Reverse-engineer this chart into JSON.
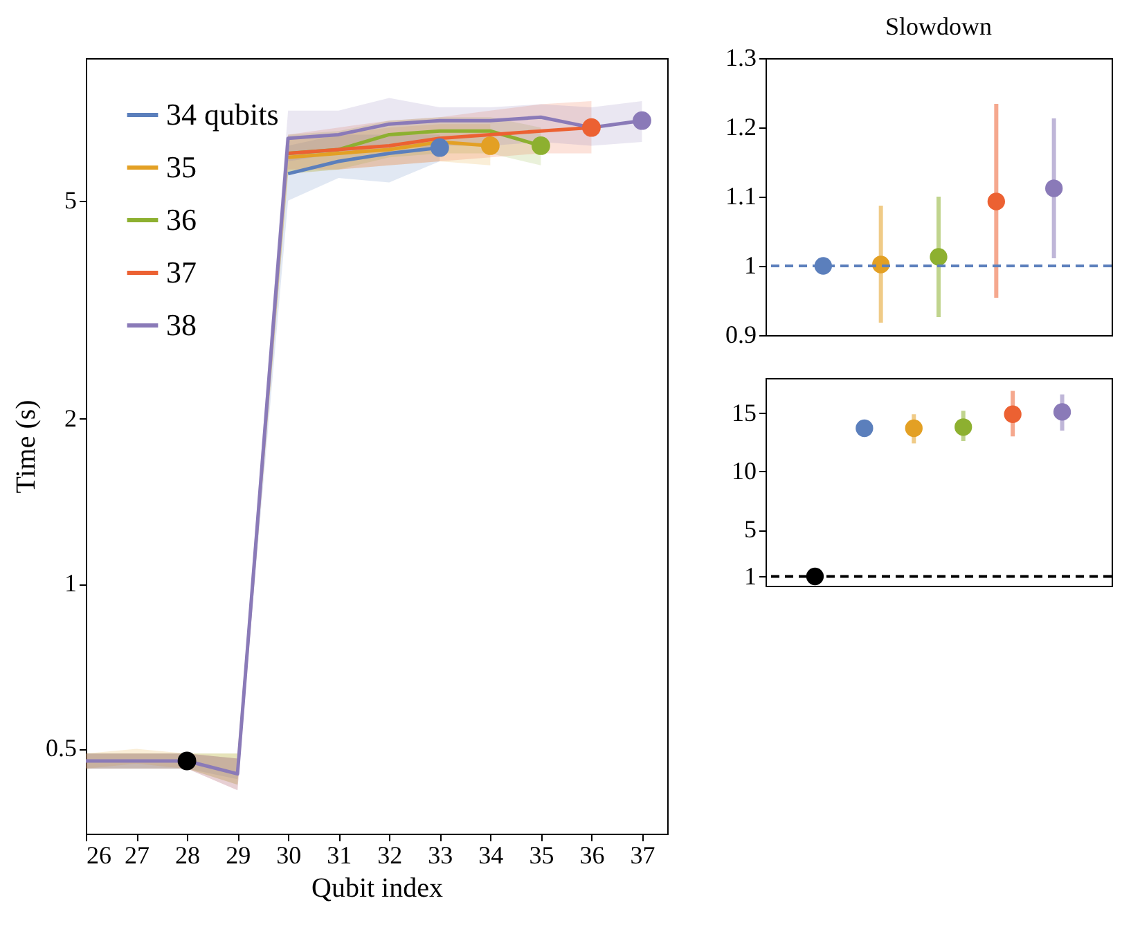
{
  "chart_data": [
    {
      "type": "line",
      "xlabel": "Qubit index",
      "ylabel": "Time (s)",
      "log": true,
      "xlim": [
        26,
        37.5
      ],
      "xticks": [
        26,
        27,
        28,
        29,
        30,
        31,
        32,
        33,
        34,
        35,
        36,
        37
      ],
      "ylim": [
        0.35,
        9.1
      ],
      "yticks": [
        0.5,
        1,
        2,
        5
      ],
      "legend": "top left",
      "grid": false,
      "marker": "none",
      "line_style": "solid",
      "series": [
        {
          "name": "34 qubits",
          "color": "#5b7fbc",
          "x": [
            26,
            27,
            28,
            29,
            30,
            31,
            32,
            33
          ],
          "values": [
            null,
            null,
            null,
            null,
            5.6,
            5.9,
            6.1,
            6.25
          ],
          "lower": [
            0.46,
            0.46,
            0.46,
            0.44,
            5.0,
            5.5,
            5.4,
            5.9
          ],
          "upper": [
            0.49,
            0.49,
            0.49,
            0.48,
            6.3,
            6.6,
            6.6,
            6.6
          ]
        },
        {
          "name": "35",
          "color": "#e3a024",
          "x": [
            26,
            27,
            28,
            29,
            30,
            31,
            32,
            33,
            34
          ],
          "values": [
            null,
            null,
            null,
            null,
            6.0,
            6.1,
            6.2,
            6.4,
            6.3
          ],
          "lower": [
            0.46,
            0.47,
            0.46,
            0.43,
            5.6,
            5.7,
            5.8,
            5.9,
            5.8
          ],
          "upper": [
            0.49,
            0.5,
            0.49,
            0.49,
            6.5,
            6.6,
            6.8,
            6.9,
            6.9
          ]
        },
        {
          "name": "36",
          "color": "#8db030",
          "x": [
            26,
            27,
            28,
            29,
            30,
            31,
            32,
            33,
            34,
            35
          ],
          "values": [
            null,
            null,
            null,
            null,
            6.1,
            6.2,
            6.6,
            6.7,
            6.7,
            6.3
          ],
          "lower": [
            0.46,
            0.46,
            0.46,
            0.43,
            5.6,
            5.7,
            6.0,
            6.1,
            6.1,
            5.8
          ],
          "upper": [
            0.49,
            0.49,
            0.49,
            0.49,
            6.6,
            6.7,
            7.0,
            7.1,
            7.1,
            6.8
          ]
        },
        {
          "name": "37",
          "color": "#ec6132",
          "x": [
            26,
            27,
            28,
            29,
            30,
            31,
            32,
            33,
            34,
            35,
            36
          ],
          "values": [
            null,
            null,
            null,
            null,
            6.1,
            6.2,
            6.3,
            6.5,
            6.6,
            6.7,
            6.8
          ],
          "lower": [
            0.46,
            0.46,
            0.46,
            0.42,
            5.7,
            5.7,
            5.8,
            5.9,
            6.0,
            6.1,
            6.1
          ],
          "upper": [
            0.49,
            0.49,
            0.49,
            0.48,
            6.6,
            6.8,
            7.0,
            7.1,
            7.3,
            7.5,
            7.6
          ]
        },
        {
          "name": "38",
          "color": "#8a7ab8",
          "x": [
            26,
            27,
            28,
            29,
            30,
            31,
            32,
            33,
            34,
            35,
            36,
            37
          ],
          "values": [
            0.475,
            0.475,
            0.475,
            0.45,
            6.5,
            6.6,
            6.9,
            7.0,
            7.0,
            7.1,
            6.8,
            7.0
          ],
          "lower": [
            0.46,
            0.46,
            0.46,
            0.42,
            5.9,
            6.1,
            6.2,
            6.3,
            6.3,
            6.4,
            6.3,
            6.4
          ],
          "upper": [
            0.49,
            0.49,
            0.49,
            0.48,
            7.3,
            7.3,
            7.7,
            7.4,
            7.4,
            7.5,
            7.4,
            7.6
          ]
        },
        {
          "type": "scatter",
          "x": [
            28,
            33,
            34,
            35,
            36,
            37
          ],
          "values": [
            0.475,
            6.25,
            6.3,
            6.3,
            6.8,
            7.0
          ],
          "colors": [
            "#000000",
            "#5b7fbc",
            "#e3a024",
            "#8db030",
            "#ec6132",
            "#8a7ab8"
          ],
          "marker": "circle"
        }
      ]
    },
    {
      "type": "scatter",
      "title": "Slowdown",
      "categories": [
        null,
        null,
        null,
        null,
        null
      ],
      "values": [
        1.0,
        1.002,
        1.013,
        1.093,
        1.112
      ],
      "colors": [
        "#5b7fbc",
        "#e3a024",
        "#8db030",
        "#ec6132",
        "#8a7ab8"
      ],
      "errors": [
        null,
        [
          0.918,
          1.087
        ],
        [
          0.926,
          1.1
        ],
        [
          0.954,
          1.234
        ],
        [
          1.011,
          1.213
        ]
      ],
      "ylim": [
        0.9,
        1.3
      ],
      "yticks": [
        0.9,
        1,
        1.1,
        1.2,
        1.3
      ],
      "tick_labels": "y",
      "grid": false,
      "marker": "circle",
      "ref_lines": [
        {
          "axis": "y",
          "value": 1,
          "color": "#5b7fbc",
          "line_style": "dashed"
        }
      ]
    },
    {
      "type": "scatter",
      "categories": [
        null,
        null,
        null,
        null,
        null,
        null
      ],
      "values": [
        1,
        13.7,
        13.7,
        13.8,
        14.9,
        15.1
      ],
      "colors": [
        "#000000",
        "#5b7fbc",
        "#e3a024",
        "#8db030",
        "#ec6132",
        "#8a7ab8"
      ],
      "errors": [
        null,
        null,
        [
          12.4,
          14.9
        ],
        [
          12.6,
          15.2
        ],
        [
          13.0,
          16.9
        ],
        [
          13.5,
          16.6
        ]
      ],
      "ylim": [
        0.2,
        18
      ],
      "yticks": [
        1,
        5,
        10,
        15
      ],
      "tick_labels": "y",
      "grid": false,
      "marker": "circle",
      "ref_lines": [
        {
          "axis": "y",
          "value": 1,
          "color": "#000000",
          "line_style": "dashed"
        }
      ]
    }
  ]
}
